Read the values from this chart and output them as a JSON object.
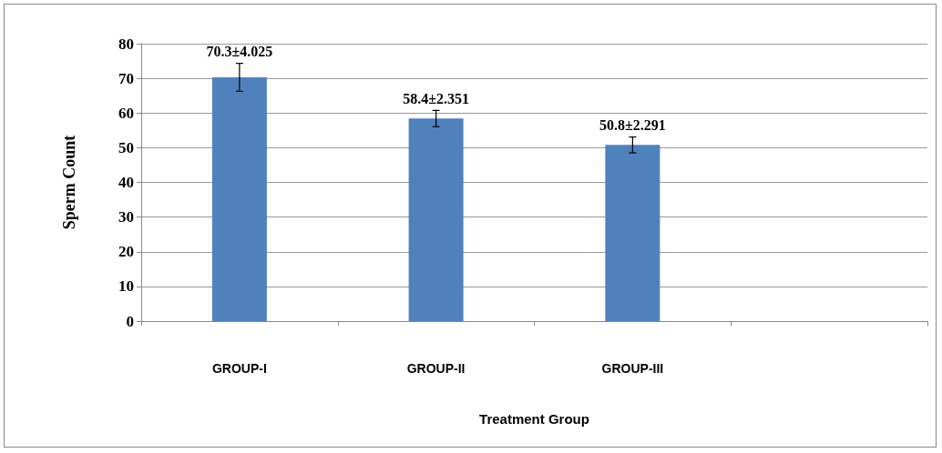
{
  "chart_data": {
    "type": "bar",
    "xlabel": "Treatment Group",
    "ylabel": "Sperm Count",
    "categories": [
      "GROUP-I",
      "GROUP-II",
      "GROUP-III",
      null
    ],
    "values": [
      70.3,
      58.4,
      50.8,
      null
    ],
    "errors": [
      4.025,
      2.351,
      2.291,
      null
    ],
    "value_labels": [
      "70.3±4.025",
      "58.4±2.351",
      "50.8±2.291",
      null
    ],
    "color": "#4f81bd",
    "ylim": [
      0,
      80
    ],
    "yticks": [
      0,
      10,
      20,
      30,
      40,
      50,
      60,
      70,
      80
    ],
    "grid": "y"
  }
}
